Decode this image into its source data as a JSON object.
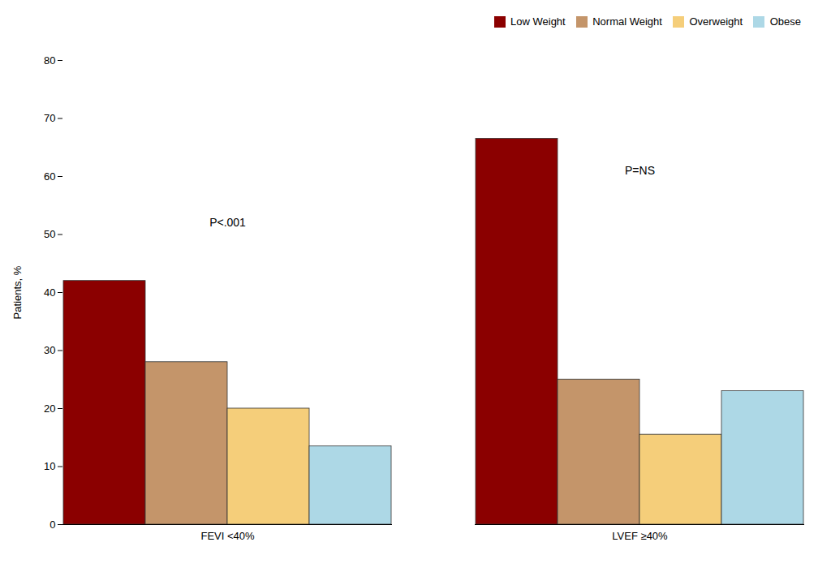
{
  "chart_data": {
    "type": "bar",
    "categories": [
      "FEVI <40%",
      "LVEF ≥40%"
    ],
    "series": [
      {
        "name": "Low Weight",
        "color": "#8B0000",
        "values": [
          42,
          66.5
        ]
      },
      {
        "name": "Normal Weight",
        "color": "#C4956A",
        "values": [
          28,
          25
        ]
      },
      {
        "name": "Overweight",
        "color": "#F5CE7A",
        "values": [
          20,
          15.5
        ]
      },
      {
        "name": "Obese",
        "color": "#ADD8E6",
        "values": [
          13.5,
          23
        ]
      }
    ],
    "ylabel": "Patients, %",
    "ylim": [
      0,
      80
    ],
    "yticks": [
      0,
      10,
      20,
      30,
      40,
      50,
      60,
      70,
      80
    ],
    "annotations": [
      {
        "text": "P<.001",
        "category": "FEVI <40%",
        "y": 52
      },
      {
        "text": "P=NS",
        "category": "LVEF ≥40%",
        "y": 61
      }
    ],
    "legend": "upper right",
    "grid": false
  }
}
